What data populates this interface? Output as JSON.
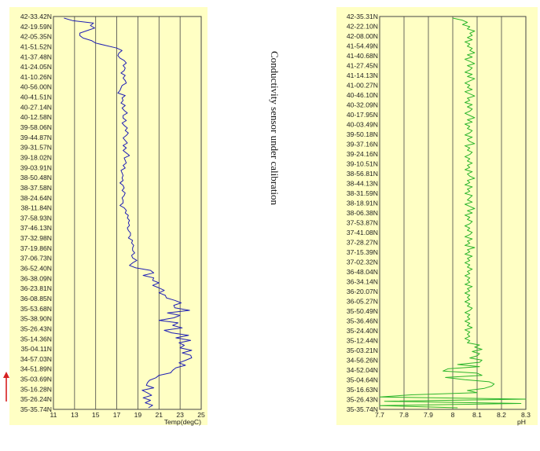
{
  "side_note": "Conductivity sensor under calibration",
  "colors": {
    "panel_bg": "#ffffc4",
    "temp_line": "#1f1fb4",
    "ph_line": "#2bb52b",
    "grid": "#444444",
    "arrow": "#d62020"
  },
  "chart_data": [
    {
      "type": "line",
      "xlabel": "Temp(degC)",
      "xlim": [
        11,
        25
      ],
      "xticks": [
        "11",
        "13",
        "15",
        "17",
        "19",
        "21",
        "23",
        "25"
      ],
      "ylabels": [
        "42-33.42N",
        "42-19.59N",
        "42-05.35N",
        "41-51.52N",
        "41-37.48N",
        "41-24.05N",
        "41-10.26N",
        "40-56.00N",
        "40-41.51N",
        "40-27.14N",
        "40-12.58N",
        "39-58.06N",
        "39-44.87N",
        "39-31.57N",
        "39-18.02N",
        "39-03.91N",
        "38-50.48N",
        "38-37.58N",
        "38-24.64N",
        "38-11.84N",
        "37-58.93N",
        "37-46.13N",
        "37-32.98N",
        "37-19.86N",
        "37-06.73N",
        "36-52.40N",
        "36-38.09N",
        "36-23.81N",
        "36-08.85N",
        "35-53.68N",
        "35-38.90N",
        "35-26.43N",
        "35-14.36N",
        "35-04.11N",
        "34-57.03N",
        "34-51.89N",
        "35-03.69N",
        "35-16.28N",
        "35-26.24N",
        "35-35.74N"
      ],
      "series": [
        {
          "values": [
            12.0,
            12.8,
            14.8,
            14.5,
            14.9,
            14.2,
            13.5,
            13.5,
            13.8,
            14.6,
            15.0,
            16.0,
            17.0,
            17.5,
            17.2,
            17.1,
            17.3,
            17.7,
            17.9,
            17.6,
            17.8,
            17.7,
            17.4,
            17.8,
            17.6,
            17.8,
            17.9,
            17.5,
            17.4,
            17.3,
            17.1,
            17.8,
            17.5,
            17.6,
            17.4,
            17.8,
            17.5,
            17.7,
            18.0,
            17.6,
            17.6,
            17.9,
            17.5,
            17.7,
            18.0,
            17.8,
            18.1,
            17.9,
            17.6,
            17.8,
            18.0,
            17.6,
            17.9,
            17.6,
            17.9,
            18.2,
            17.7,
            17.8,
            17.9,
            17.6,
            17.8,
            17.4,
            17.5,
            17.6,
            17.5,
            17.6,
            17.3,
            17.6,
            17.7,
            17.5,
            17.8,
            17.7,
            17.5,
            17.6,
            17.6,
            17.3,
            17.7,
            17.9,
            17.8,
            18.1,
            18.0,
            18.2,
            18.1,
            18.2,
            18.0,
            18.1,
            18.3,
            18.3,
            18.1,
            18.5,
            18.4,
            18.6,
            18.5,
            18.5,
            18.7,
            18.4,
            18.5,
            18.9,
            18.5,
            18.2,
            18.8,
            20.2,
            20.5,
            19.5,
            20.5,
            20.4,
            21.0,
            20.4,
            21.0,
            21.5,
            21.0,
            21.6,
            21.7,
            22.5,
            23.1,
            22.4,
            22.5,
            23.9,
            21.8,
            23.0,
            22.4,
            21.0,
            22.8,
            22.3,
            23.2,
            21.5,
            22.2,
            23.8,
            22.6,
            24.0,
            22.9,
            23.4,
            23.0,
            24.1,
            23.2,
            24.0,
            24.1,
            23.5,
            22.9,
            23.5,
            22.6,
            22.3,
            22.1,
            21.0,
            20.7,
            20.1,
            19.9,
            19.8,
            20.5,
            19.4,
            19.9,
            20.3,
            19.5,
            20.2,
            19.7,
            20.4,
            20.0
          ]
        }
      ]
    },
    {
      "type": "line",
      "xlabel": "pH",
      "xlim": [
        7.7,
        8.3
      ],
      "xticks": [
        "7.7",
        "7.8",
        "7.9",
        "8",
        "8.1",
        "8.2",
        "8.3"
      ],
      "ylabels": [
        "42-35.31N",
        "42-22.10N",
        "42-08.00N",
        "41-54.49N",
        "41-40.68N",
        "41-27.45N",
        "41-14.13N",
        "41-00.27N",
        "40-46.10N",
        "40-32.09N",
        "40-17.95N",
        "40-03.49N",
        "39-50.18N",
        "39-37.16N",
        "39-24.16N",
        "39-10.51N",
        "38-56.81N",
        "38-44.13N",
        "38-31.59N",
        "38-18.91N",
        "38-06.38N",
        "37-53.87N",
        "37-41.08N",
        "37-28.27N",
        "37-15.39N",
        "37-02.32N",
        "36-48.04N",
        "36-34.14N",
        "36-20.07N",
        "36-05.27N",
        "35-50.49N",
        "35-36.46N",
        "35-24.40N",
        "35-12.44N",
        "35-03.21N",
        "34-56.26N",
        "34-52.04N",
        "35-04.64N",
        "35-16.63N",
        "35-26.43N",
        "35-35.74N"
      ],
      "series": [
        {
          "values": [
            8.0,
            8.04,
            8.06,
            8.04,
            8.07,
            8.06,
            8.09,
            8.07,
            8.08,
            8.06,
            8.08,
            8.05,
            8.07,
            8.06,
            8.08,
            8.07,
            8.09,
            8.06,
            8.08,
            8.05,
            8.07,
            8.09,
            8.06,
            8.08,
            8.07,
            8.05,
            8.08,
            8.06,
            8.09,
            8.07,
            8.05,
            8.07,
            8.06,
            8.08,
            8.05,
            8.07,
            8.09,
            8.06,
            8.07,
            8.05,
            8.08,
            8.06,
            8.08,
            8.07,
            8.05,
            8.07,
            8.09,
            8.06,
            8.08,
            8.05,
            8.07,
            8.06,
            8.08,
            8.07,
            8.05,
            8.08,
            8.06,
            8.07,
            8.09,
            8.05,
            8.07,
            8.06,
            8.08,
            8.07,
            8.05,
            8.07,
            8.06,
            8.08,
            8.06,
            8.07,
            8.05,
            8.08,
            8.06,
            8.07,
            8.09,
            8.06,
            8.07,
            8.05,
            8.08,
            8.06,
            8.07,
            8.05,
            8.08,
            8.07,
            8.06,
            8.08,
            8.05,
            8.07,
            8.09,
            8.06,
            8.08,
            8.05,
            8.07,
            8.06,
            8.08,
            8.07,
            8.05,
            8.07,
            8.06,
            8.08,
            8.07,
            8.05,
            8.08,
            8.06,
            8.07,
            8.05,
            8.09,
            8.06,
            8.07,
            8.05,
            8.08,
            8.06,
            8.07,
            8.05,
            8.07,
            8.06,
            8.08,
            8.06,
            8.07,
            8.05,
            8.07,
            8.06,
            8.07,
            8.05,
            8.08,
            8.06,
            8.07,
            8.05,
            8.07,
            8.06,
            8.07,
            8.05,
            8.07,
            8.06,
            8.08,
            8.07,
            8.05,
            8.07,
            8.06,
            8.07,
            8.05,
            8.07,
            8.06,
            8.08,
            8.05,
            8.07,
            8.06,
            8.07,
            8.05,
            8.07,
            8.06,
            8.11,
            8.09,
            8.12,
            8.08,
            8.11,
            8.1,
            8.07,
            8.12,
            8.11,
            8.02,
            8.11,
            7.98,
            7.96,
            8.1,
            8.12,
            7.97,
            8.05,
            8.15,
            8.17,
            8.16,
            8.13,
            8.06,
            8.1,
            7.83,
            7.7,
            8.3,
            7.72,
            8.28,
            7.7,
            8.02
          ]
        }
      ]
    }
  ]
}
